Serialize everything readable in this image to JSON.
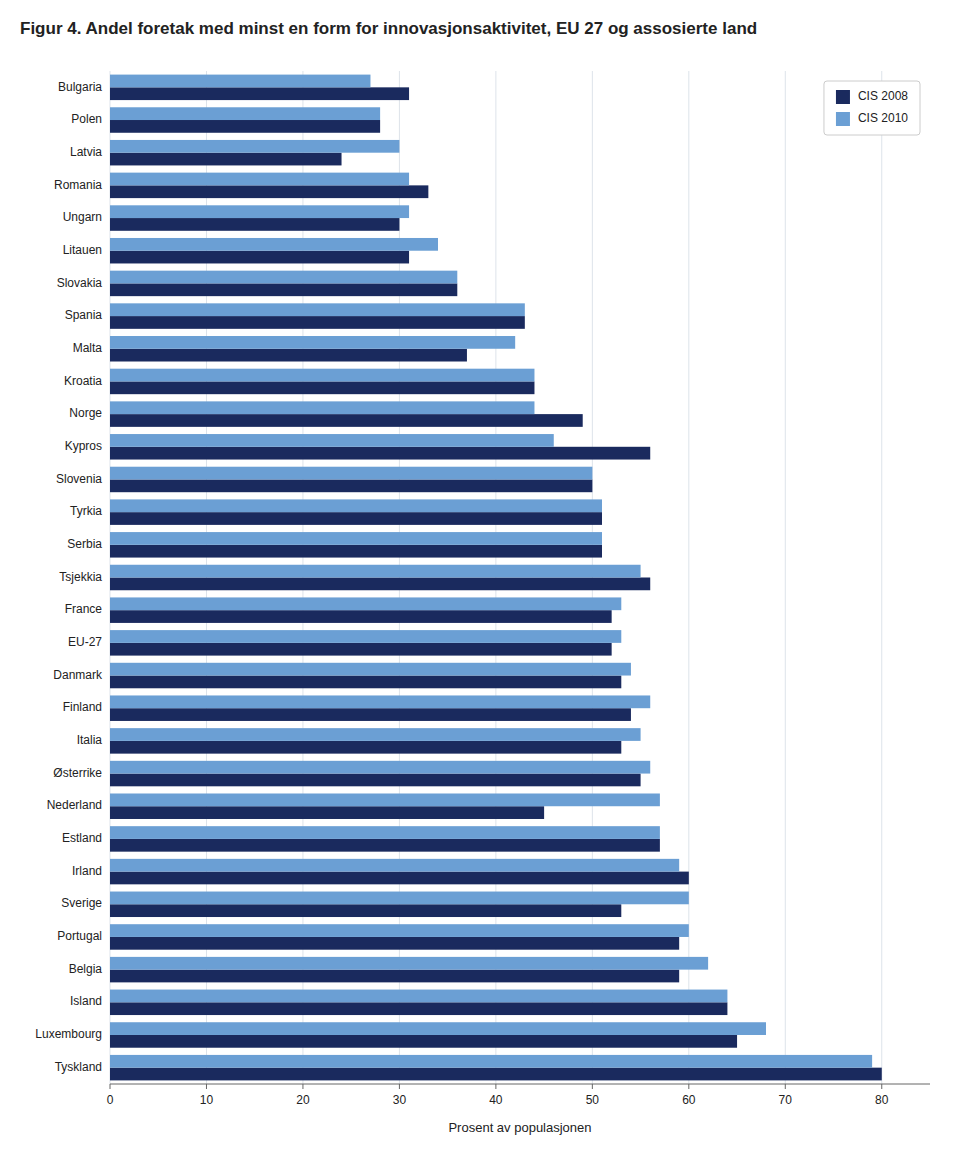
{
  "chart_data": {
    "type": "bar",
    "orientation": "horizontal",
    "title": "Figur 4. Andel foretak med minst en form for innovasjonsaktivitet, EU 27 og assosierte land",
    "categories": [
      "Bulgaria",
      "Polen",
      "Latvia",
      "Romania",
      "Ungarn",
      "Litauen",
      "Slovakia",
      "Spania",
      "Malta",
      "Kroatia",
      "Norge",
      "Kypros",
      "Slovenia",
      "Tyrkia",
      "Serbia",
      "Tsjekkia",
      "France",
      "EU-27",
      "Danmark",
      "Finland",
      "Italia",
      "Østerrike",
      "Nederland",
      "Estland",
      "Irland",
      "Sverige",
      "Portugal",
      "Belgia",
      "Island",
      "Luxembourg",
      "Tyskland"
    ],
    "series": [
      {
        "name": "CIS 2008",
        "color": "#1a2a5e",
        "values": [
          31,
          28,
          24,
          33,
          30,
          31,
          36,
          43,
          37,
          44,
          49,
          56,
          50,
          51,
          51,
          56,
          52,
          52,
          53,
          54,
          53,
          55,
          45,
          57,
          60,
          53,
          59,
          59,
          64,
          65,
          80
        ]
      },
      {
        "name": "CIS 2010",
        "color": "#6b9fd4",
        "values": [
          27,
          28,
          30,
          31,
          31,
          34,
          36,
          43,
          42,
          44,
          44,
          46,
          50,
          51,
          51,
          55,
          53,
          53,
          54,
          56,
          55,
          56,
          57,
          57,
          59,
          60,
          60,
          62,
          64,
          68,
          79
        ]
      }
    ],
    "xlabel": "Prosent av populasjonen",
    "xlim": [
      0,
      85
    ],
    "xticks": [
      0,
      10,
      20,
      30,
      40,
      50,
      60,
      70,
      80
    ],
    "grid": true,
    "legend": "upper right"
  }
}
